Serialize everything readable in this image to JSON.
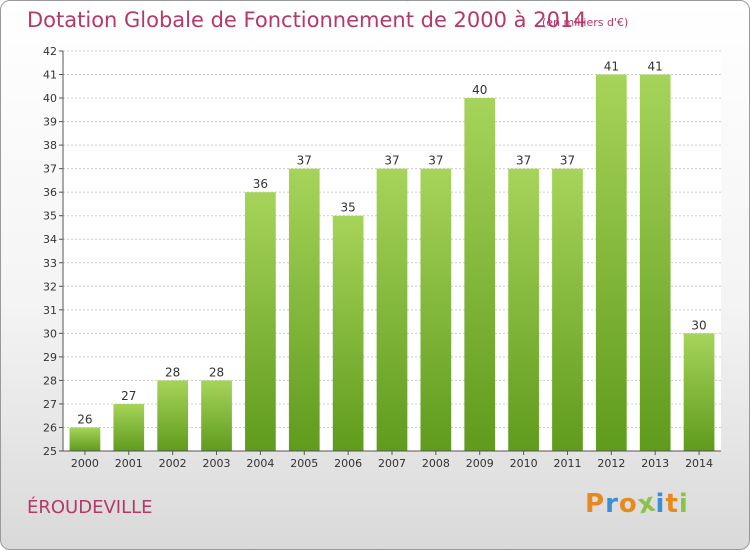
{
  "chart_data": {
    "type": "bar",
    "title": "Dotation Globale de Fonctionnement de 2000 à 2014",
    "subtitle": "(en milliers d'€)",
    "categories": [
      "2000",
      "2001",
      "2002",
      "2003",
      "2004",
      "2005",
      "2006",
      "2007",
      "2008",
      "2009",
      "2010",
      "2011",
      "2012",
      "2013",
      "2014"
    ],
    "values": [
      26,
      27,
      28,
      28,
      36,
      37,
      35,
      37,
      37,
      40,
      37,
      37,
      41,
      41,
      30
    ],
    "ylim": [
      25,
      42
    ],
    "yticks": [
      25,
      26,
      27,
      28,
      29,
      30,
      31,
      32,
      33,
      34,
      35,
      36,
      37,
      38,
      39,
      40,
      41,
      42
    ],
    "grid": true,
    "bar_color": "#7db53a",
    "xlabel": "",
    "ylabel": ""
  },
  "commune": "ÉROUDEVILLE",
  "logo": {
    "letters": [
      "P",
      "r",
      "o",
      "x",
      "i",
      "t",
      "i"
    ],
    "colors": [
      "#e8891e",
      "#3b8fd4",
      "#e8891e",
      "#8bc34a",
      "#3b8fd4",
      "#e8891e",
      "#8bc34a"
    ]
  },
  "colors": {
    "title": "#b5386a",
    "grid": "#cccccc"
  }
}
